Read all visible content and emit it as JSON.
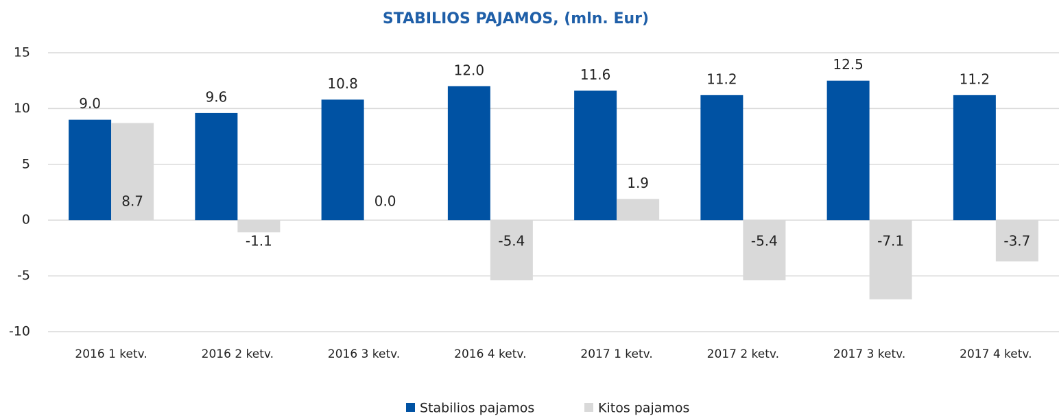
{
  "chart_data": {
    "type": "bar",
    "title": "STABILIOS  PAJAMOS,  (mln. Eur)",
    "categories": [
      "2016 1 ketv.",
      "2016 2 ketv.",
      "2016 3 ketv.",
      "2016 4 ketv.",
      "2017 1 ketv.",
      "2017 2 ketv.",
      "2017 3 ketv.",
      "2017 4 ketv."
    ],
    "series": [
      {
        "name": "Stabilios pajamos",
        "color": "#0052a3",
        "values": [
          9.0,
          9.6,
          10.8,
          12.0,
          11.6,
          11.2,
          12.5,
          11.2
        ],
        "value_labels": [
          "9.0",
          "9.6",
          "10.8",
          "12.0",
          "11.6",
          "11.2",
          "12.5",
          "11.2"
        ]
      },
      {
        "name": "Kitos pajamos",
        "color": "#d9d9d9",
        "values": [
          8.7,
          -1.1,
          0.0,
          -5.4,
          1.9,
          -5.4,
          -7.1,
          -3.7
        ],
        "value_labels": [
          "8.7",
          "-1.1",
          "0.0",
          "-5.4",
          "1.9",
          "-5.4",
          "-7.1",
          "-3.7"
        ]
      }
    ],
    "ylim": [
      -10,
      15
    ],
    "yticks": [
      -10,
      -5,
      0,
      5,
      10,
      15
    ],
    "grid": true,
    "legend": "bottom"
  }
}
